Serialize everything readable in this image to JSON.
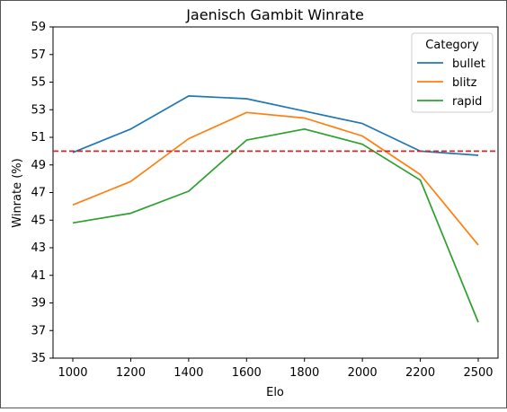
{
  "chart_data": {
    "type": "line",
    "title": "Jaenisch Gambit Winrate",
    "xlabel": "Elo",
    "ylabel": "Winrate (%)",
    "categories": [
      "1000",
      "1200",
      "1400",
      "1600",
      "1800",
      "2000",
      "2200",
      "2500"
    ],
    "ylim": [
      35,
      59
    ],
    "yticks": [
      "35",
      "37",
      "39",
      "41",
      "43",
      "45",
      "47",
      "49",
      "51",
      "53",
      "55",
      "57",
      "59"
    ],
    "grid": false,
    "legend": {
      "title": "Category",
      "placement": "top-right"
    },
    "reference_line": {
      "y": 50,
      "color": "#d62728",
      "style": "dashed"
    },
    "series": [
      {
        "name": "bullet",
        "color": "#1f77b4",
        "values": [
          49.9,
          51.6,
          54.0,
          53.8,
          52.9,
          52.0,
          50.0,
          49.7
        ]
      },
      {
        "name": "blitz",
        "color": "#ff7f0e",
        "values": [
          46.1,
          47.8,
          50.9,
          52.8,
          52.4,
          51.1,
          48.3,
          43.2
        ]
      },
      {
        "name": "rapid",
        "color": "#2ca02c",
        "values": [
          44.8,
          45.5,
          47.1,
          50.8,
          51.6,
          50.5,
          47.9,
          37.6
        ]
      }
    ]
  }
}
